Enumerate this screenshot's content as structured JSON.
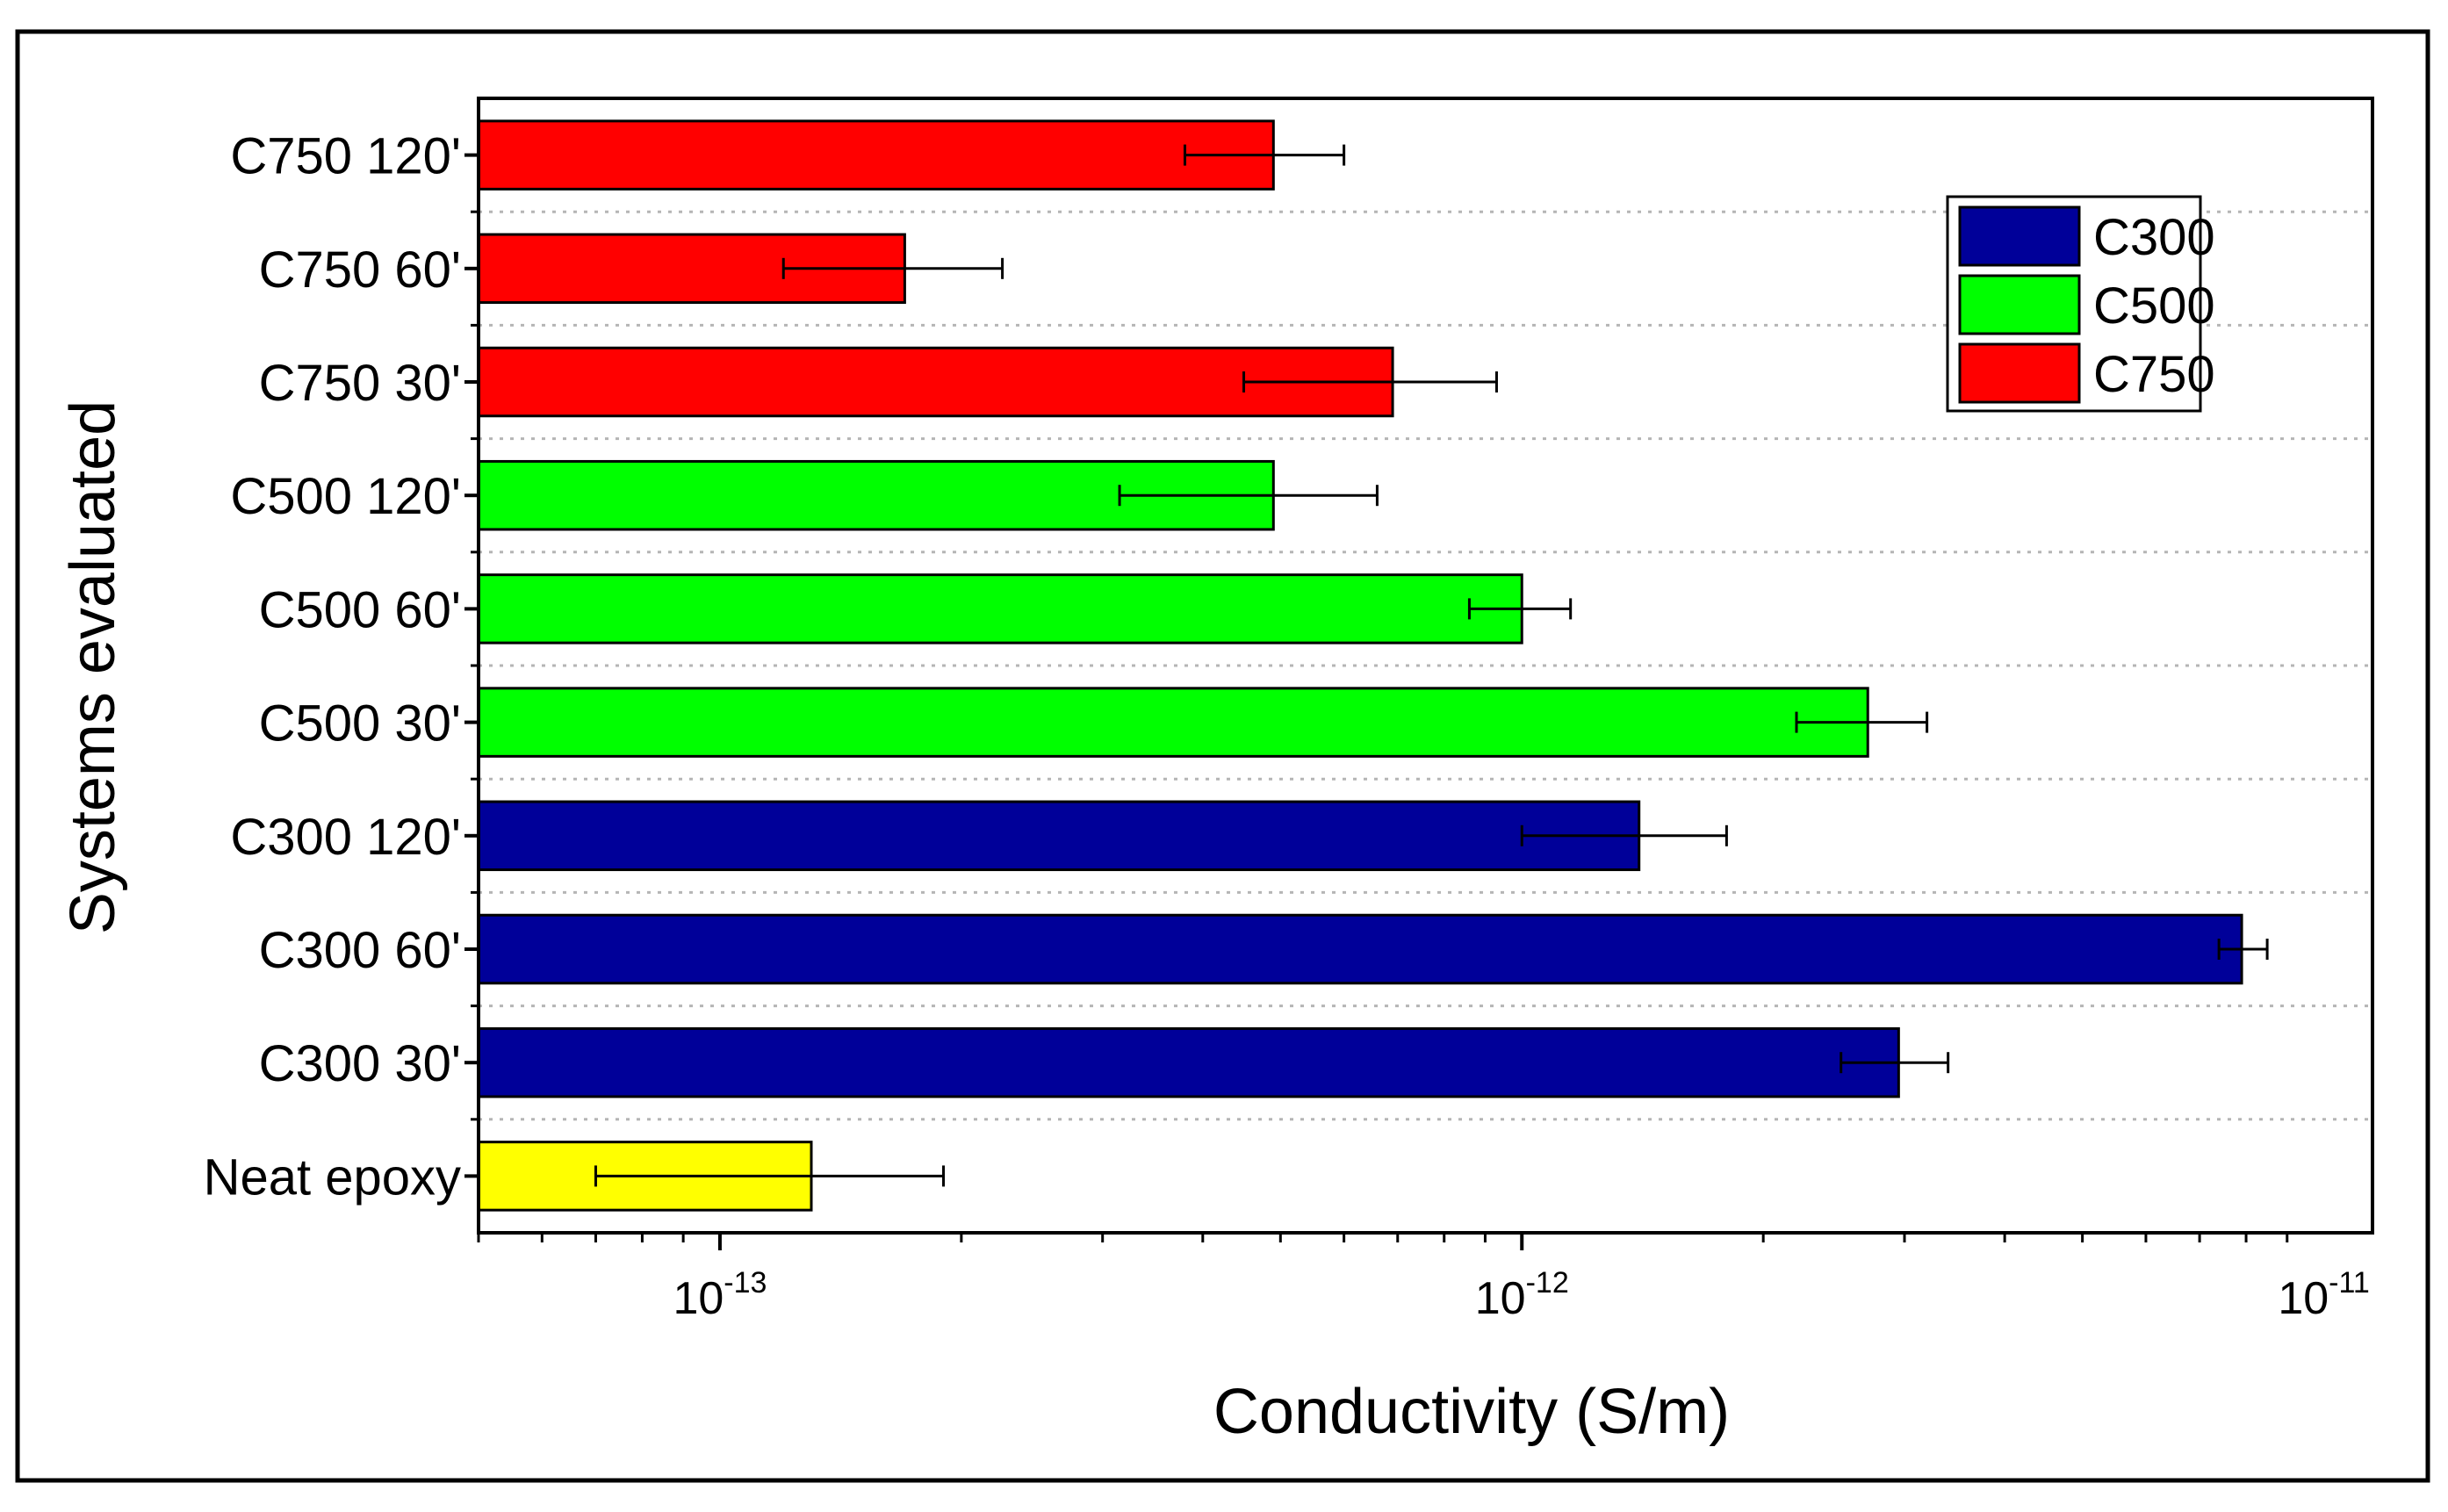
{
  "chart_data": {
    "type": "bar",
    "orientation": "horizontal",
    "xscale": "log",
    "title": "",
    "xlabel": "Conductivity (S/m)",
    "ylabel": "Systems evaluated",
    "xlim": [
      5e-14,
      1.15e-11
    ],
    "xticks": [
      {
        "value": 1e-13,
        "base": "10",
        "exp": "-13"
      },
      {
        "value": 1e-12,
        "base": "10",
        "exp": "-12"
      },
      {
        "value": 1e-11,
        "base": "10",
        "exp": "-11"
      }
    ],
    "grid": "horizontal dotted",
    "legend": {
      "position": "top-right",
      "entries": [
        {
          "label": "C300",
          "color": "#000099"
        },
        {
          "label": "C500",
          "color": "#00ff00"
        },
        {
          "label": "C750",
          "color": "#ff0000"
        }
      ]
    },
    "bars": [
      {
        "label": "C750 120'",
        "value": 4.9e-13,
        "err_low": 3.8e-13,
        "err_high": 6e-13,
        "color": "#ff0000"
      },
      {
        "label": "C750 60'",
        "value": 1.7e-13,
        "err_low": 1.2e-13,
        "err_high": 2.25e-13,
        "color": "#ff0000"
      },
      {
        "label": "C750 30'",
        "value": 6.9e-13,
        "err_low": 4.5e-13,
        "err_high": 9.3e-13,
        "color": "#ff0000"
      },
      {
        "label": "C500 120'",
        "value": 4.9e-13,
        "err_low": 3.15e-13,
        "err_high": 6.6e-13,
        "color": "#00ff00"
      },
      {
        "label": "C500 60'",
        "value": 1e-12,
        "err_low": 8.6e-13,
        "err_high": 1.15e-12,
        "color": "#00ff00"
      },
      {
        "label": "C500 30'",
        "value": 2.7e-12,
        "err_low": 2.2e-12,
        "err_high": 3.2e-12,
        "color": "#00ff00"
      },
      {
        "label": "C300 120'",
        "value": 1.4e-12,
        "err_low": 1e-12,
        "err_high": 1.8e-12,
        "color": "#000099"
      },
      {
        "label": "C300 60'",
        "value": 7.9e-12,
        "err_low": 7.4e-12,
        "err_high": 8.5e-12,
        "color": "#000099"
      },
      {
        "label": "C300 30'",
        "value": 2.95e-12,
        "err_low": 2.5e-12,
        "err_high": 3.4e-12,
        "color": "#000099"
      },
      {
        "label": "Neat epoxy",
        "value": 1.3e-13,
        "err_low": 7e-14,
        "err_high": 1.9e-13,
        "color": "#ffff00"
      }
    ]
  }
}
